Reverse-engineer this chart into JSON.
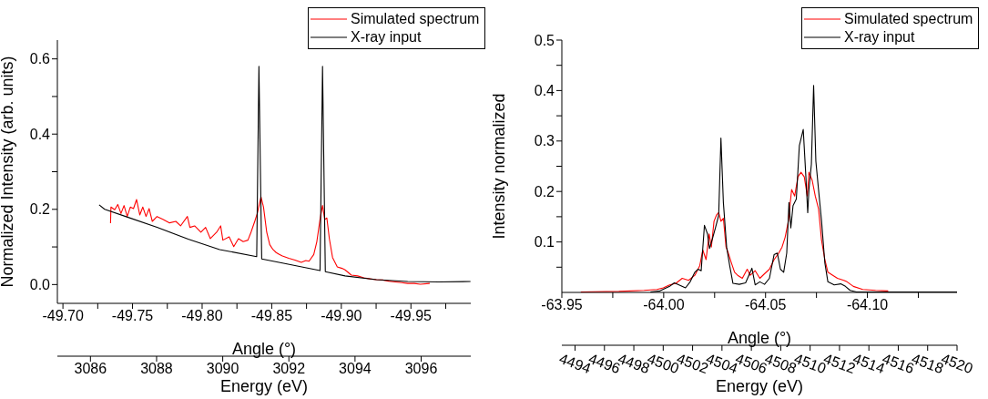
{
  "chart_data": [
    {
      "type": "line",
      "xlabel": "Angle (°)",
      "ylabel": "Normalized Intensity (arb. units)",
      "x2label": "Energy (eV)",
      "legend": "top right",
      "xlim": [
        -49.696,
        -49.993
      ],
      "xticks": [
        {
          "value": -49.7,
          "label": "-49.70"
        },
        {
          "value": -49.725,
          "label": null
        },
        {
          "value": -49.75,
          "label": "-49.75"
        },
        {
          "value": -49.775,
          "label": null
        },
        {
          "value": -49.8,
          "label": "-49.80"
        },
        {
          "value": -49.825,
          "label": null
        },
        {
          "value": -49.85,
          "label": "-49.85"
        },
        {
          "value": -49.875,
          "label": null
        },
        {
          "value": -49.9,
          "label": "-49.90"
        },
        {
          "value": -49.925,
          "label": null
        },
        {
          "value": -49.95,
          "label": "-49.95"
        },
        {
          "value": -49.975,
          "label": null
        }
      ],
      "x2lim": [
        3085,
        3097.5
      ],
      "x2ticks": [
        3086,
        3088,
        3090,
        3092,
        3094,
        3096
      ],
      "ylim": [
        -0.05,
        0.65
      ],
      "yticks": [
        {
          "value": 0,
          "label": "0.0"
        },
        {
          "value": 0.1,
          "label": null
        },
        0.2,
        {
          "value": 0.3,
          "label": null
        },
        0.4,
        {
          "value": 0.5,
          "label": null
        },
        0.6
      ],
      "series": [
        {
          "name": "Simulated spectrum",
          "color": "#ff0000",
          "x": [
            -49.7342,
            -49.7345,
            -49.7372,
            -49.7394,
            -49.7417,
            -49.7439,
            -49.7462,
            -49.7484,
            -49.7507,
            -49.7529,
            -49.7552,
            -49.7574,
            -49.7597,
            -49.7619,
            -49.7642,
            -49.7676,
            -49.7721,
            -49.7766,
            -49.7811,
            -49.7845,
            -49.7894,
            -49.7912,
            -49.7946,
            -49.7991,
            -49.8025,
            -49.8059,
            -49.8104,
            -49.8133,
            -49.8149,
            -49.8194,
            -49.8227,
            -49.8261,
            -49.8295,
            -49.8329,
            -49.8351,
            -49.8378,
            -49.8396,
            -49.8423,
            -49.8441,
            -49.8464,
            -49.8486,
            -49.8509,
            -49.8532,
            -49.8554,
            -49.8577,
            -49.8622,
            -49.8667,
            -49.8712,
            -49.8745,
            -49.8768,
            -49.8802,
            -49.8824,
            -49.8847,
            -49.8865,
            -49.8881,
            -49.8896,
            -49.8914,
            -49.8937,
            -49.8971,
            -49.9005,
            -49.9027,
            -49.9072,
            -49.9117,
            -49.9162,
            -49.9207,
            -49.9252,
            -49.9297,
            -49.9342,
            -49.9387,
            -49.9432,
            -49.9477,
            -49.9523,
            -49.9568,
            -49.9635
          ],
          "values": [
            0.163,
            0.206,
            0.199,
            0.213,
            0.189,
            0.21,
            0.181,
            0.206,
            0.202,
            0.226,
            0.185,
            0.206,
            0.181,
            0.202,
            0.168,
            0.181,
            0.173,
            0.164,
            0.168,
            0.156,
            0.181,
            0.152,
            0.156,
            0.139,
            0.152,
            0.122,
            0.139,
            0.156,
            0.118,
            0.127,
            0.101,
            0.122,
            0.114,
            0.118,
            0.139,
            0.168,
            0.189,
            0.233,
            0.206,
            0.139,
            0.106,
            0.093,
            0.085,
            0.08,
            0.076,
            0.07,
            0.065,
            0.059,
            0.064,
            0.062,
            0.08,
            0.114,
            0.173,
            0.21,
            0.173,
            0.177,
            0.122,
            0.072,
            0.047,
            0.043,
            0.039,
            0.025,
            0.023,
            0.018,
            0.015,
            0.013,
            0.012,
            0.009,
            0.007,
            0.005,
            0.003,
            0.003,
            0.001,
            0.003
          ]
        },
        {
          "name": "X-ray input",
          "color": "#000000",
          "x": [
            -49.726,
            -49.73,
            -49.745,
            -49.7676,
            -49.79,
            -49.8126,
            -49.8392,
            -49.8408,
            -49.8428,
            -49.8577,
            -49.8847,
            -49.8865,
            -49.8885,
            -49.9027,
            -49.9252,
            -49.9477,
            -49.97,
            -49.9928
          ],
          "values": [
            0.212,
            0.2,
            0.181,
            0.152,
            0.121,
            0.093,
            0.074,
            0.58,
            0.068,
            0.057,
            0.037,
            0.58,
            0.034,
            0.023,
            0.013,
            0.008,
            0.007,
            0.008
          ]
        }
      ]
    },
    {
      "type": "line",
      "xlabel": "Angle (°)",
      "ylabel": "Intensity normalized",
      "x2label": "Energy (eV)",
      "legend": "top right",
      "xlim": [
        -63.95,
        -64.144
      ],
      "xticks": [
        {
          "value": -63.95,
          "label": "-63.95"
        },
        {
          "value": -63.975,
          "label": null
        },
        {
          "value": -64,
          "label": "-64.00"
        },
        {
          "value": -64.025,
          "label": null
        },
        {
          "value": -64.05,
          "label": "-64.05"
        },
        {
          "value": -64.075,
          "label": null
        },
        {
          "value": -64.1,
          "label": "-64.10"
        },
        {
          "value": -64.125,
          "label": null
        }
      ],
      "x2lim": [
        4493.1,
        4520
      ],
      "x2ticks": [
        4494,
        4496,
        4498,
        4500,
        4502,
        4504,
        4506,
        4508,
        4510,
        4512,
        4514,
        4516,
        4518,
        4520
      ],
      "ylim": [
        0,
        0.5
      ],
      "yticks": [
        {
          "value": 0.05,
          "label": null
        },
        0.1,
        {
          "value": 0.15,
          "label": null
        },
        0.2,
        {
          "value": 0.25,
          "label": null
        },
        0.3,
        {
          "value": 0.35,
          "label": null
        },
        0.4,
        {
          "value": 0.45,
          "label": null
        },
        0.5
      ],
      "series": [
        {
          "name": "Simulated spectrum",
          "color": "#ff0000",
          "x": [
            -63.9593,
            -63.978,
            -63.9904,
            -63.9967,
            -63.9998,
            -64.0029,
            -64.006,
            -64.0091,
            -64.0122,
            -64.0153,
            -64.0177,
            -64.0192,
            -64.0208,
            -64.0223,
            -64.0234,
            -64.0247,
            -64.0259,
            -64.027,
            -64.0281,
            -64.0293,
            -64.0306,
            -64.0317,
            -64.0332,
            -64.0348,
            -64.0363,
            -64.0386,
            -64.041,
            -64.0425,
            -64.0449,
            -64.0472,
            -64.0495,
            -64.0519,
            -64.0542,
            -64.0565,
            -64.0581,
            -64.0596,
            -64.0612,
            -64.0628,
            -64.0643,
            -64.0659,
            -64.0674,
            -64.069,
            -64.0705,
            -64.0713,
            -64.0729,
            -64.0744,
            -64.076,
            -64.0775,
            -64.0791,
            -64.0806,
            -64.083,
            -64.0853,
            -64.0884,
            -64.09,
            -64.0931,
            -64.0977,
            -64.104,
            -64.1102
          ],
          "values": [
            0.001,
            0.002,
            0.004,
            0.006,
            0.009,
            0.015,
            0.018,
            0.028,
            0.024,
            0.034,
            0.053,
            0.084,
            0.065,
            0.116,
            0.09,
            0.141,
            0.153,
            0.158,
            0.141,
            0.147,
            0.09,
            0.078,
            0.059,
            0.04,
            0.034,
            0.028,
            0.046,
            0.034,
            0.043,
            0.028,
            0.037,
            0.046,
            0.065,
            0.078,
            0.09,
            0.109,
            0.141,
            0.204,
            0.191,
            0.229,
            0.238,
            0.229,
            0.191,
            0.238,
            0.222,
            0.191,
            0.166,
            0.103,
            0.065,
            0.04,
            0.034,
            0.028,
            0.024,
            0.021,
            0.012,
            0.006,
            0.004,
            0.003
          ]
        },
        {
          "name": "X-ray input",
          "color": "#000000",
          "x": [
            -63.9935,
            -63.9982,
            -64.0029,
            -64.0052,
            -64.0075,
            -64.0107,
            -64.013,
            -64.0153,
            -64.0169,
            -64.0184,
            -64.02,
            -64.0215,
            -64.0225,
            -64.0239,
            -64.0254,
            -64.027,
            -64.0281,
            -64.0293,
            -64.0309,
            -64.0324,
            -64.034,
            -64.0371,
            -64.0402,
            -64.0425,
            -64.0433,
            -64.0449,
            -64.0472,
            -64.0495,
            -64.0519,
            -64.0542,
            -64.0558,
            -64.0573,
            -64.0589,
            -64.0604,
            -64.0615,
            -64.0624,
            -64.0635,
            -64.0651,
            -64.0666,
            -64.0685,
            -64.0698,
            -64.0707,
            -64.0713,
            -64.0725,
            -64.0736,
            -64.0747,
            -64.076,
            -64.0775,
            -64.0791,
            -64.0806,
            -64.0837,
            -64.0869,
            -64.0892,
            -64.0915,
            -64.0946,
            -64.144
          ],
          "values": [
            0.001,
            0.003,
            0.012,
            0.019,
            0.015,
            0.009,
            0.021,
            0.04,
            0.046,
            0.043,
            0.133,
            0.116,
            0.087,
            0.106,
            0.128,
            0.153,
            0.306,
            0.178,
            0.09,
            0.053,
            0.018,
            0.016,
            0.019,
            0.04,
            0.048,
            0.015,
            0.021,
            0.016,
            0.028,
            0.075,
            0.078,
            0.046,
            0.04,
            0.078,
            0.178,
            0.128,
            0.172,
            0.185,
            0.291,
            0.323,
            0.229,
            0.158,
            0.204,
            0.254,
            0.41,
            0.26,
            0.204,
            0.141,
            0.059,
            0.021,
            0.015,
            0.017,
            0.012,
            0.004,
            0.001,
            0.001
          ]
        }
      ]
    }
  ]
}
